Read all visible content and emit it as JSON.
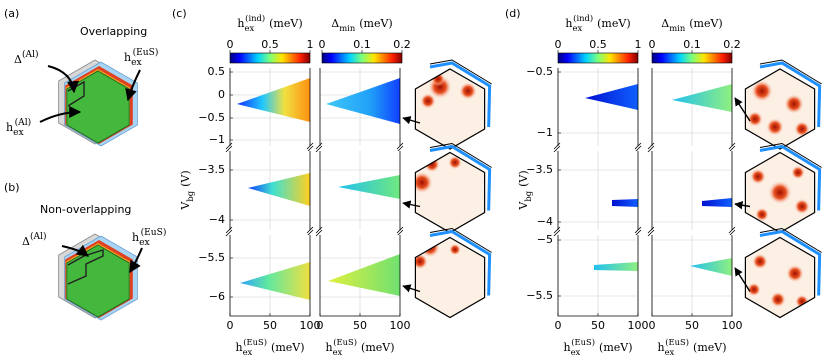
{
  "panel_a": {
    "label": "(a)",
    "title": "Overlapping",
    "annotations": [
      {
        "base": "Δ",
        "sup": "(Al)"
      },
      {
        "base": "h",
        "sub": "ex",
        "sup": "(EuS)"
      },
      {
        "base": "h",
        "sub": "ex",
        "sup": "(Al)"
      }
    ]
  },
  "panel_b": {
    "label": "(b)",
    "title": "Non-overlapping",
    "annotations": [
      {
        "base": "Δ",
        "sup": "(Al)"
      },
      {
        "base": "h",
        "sub": "ex",
        "sup": "(EuS)"
      }
    ]
  },
  "panel_c": {
    "label": "(c)",
    "colorbars": [
      {
        "title": {
          "base": "h",
          "sub": "ex",
          "sup": "(ind)",
          "unit": "(meV)"
        },
        "ticks": [
          "0",
          "0.5",
          "1"
        ]
      },
      {
        "title": {
          "base": "Δ",
          "sub": "min",
          "unit": "(meV)"
        },
        "ticks": [
          "0",
          "0.1",
          "0.2"
        ]
      }
    ],
    "y_label": {
      "base": "V",
      "sub": "bg",
      "unit": "(V)"
    },
    "x_label": {
      "base": "h",
      "sub": "ex",
      "sup": "(EuS)",
      "unit": "(meV)"
    },
    "x_ticks": [
      "0",
      "50",
      "100"
    ],
    "rows": [
      {
        "y_ticks": [
          "0.5",
          "0",
          "−0.5",
          "−1"
        ]
      },
      {
        "y_ticks": [
          "−3.5",
          "−4"
        ]
      },
      {
        "y_ticks": [
          "−5.5",
          "−6"
        ]
      }
    ]
  },
  "panel_d": {
    "label": "(d)",
    "colorbars": [
      {
        "title": {
          "base": "h",
          "sub": "ex",
          "sup": "(ind)",
          "unit": "(meV)"
        },
        "ticks": [
          "0",
          "0.5",
          "1"
        ]
      },
      {
        "title": {
          "base": "Δ",
          "sub": "min",
          "unit": "(meV)"
        },
        "ticks": [
          "0",
          "0.1",
          "0.2"
        ]
      }
    ],
    "y_label": {
      "base": "V",
      "sub": "bg",
      "unit": "(V)"
    },
    "x_label": {
      "base": "h",
      "sub": "ex",
      "sup": "(EuS)",
      "unit": "(meV)"
    },
    "x_ticks": [
      "0",
      "50",
      "100"
    ],
    "rows": [
      {
        "y_ticks": [
          "−0.5",
          "−1"
        ]
      },
      {
        "y_ticks": [
          "−3.5",
          "−4"
        ]
      },
      {
        "y_ticks": [
          "−5",
          "−5.5"
        ]
      }
    ]
  }
}
